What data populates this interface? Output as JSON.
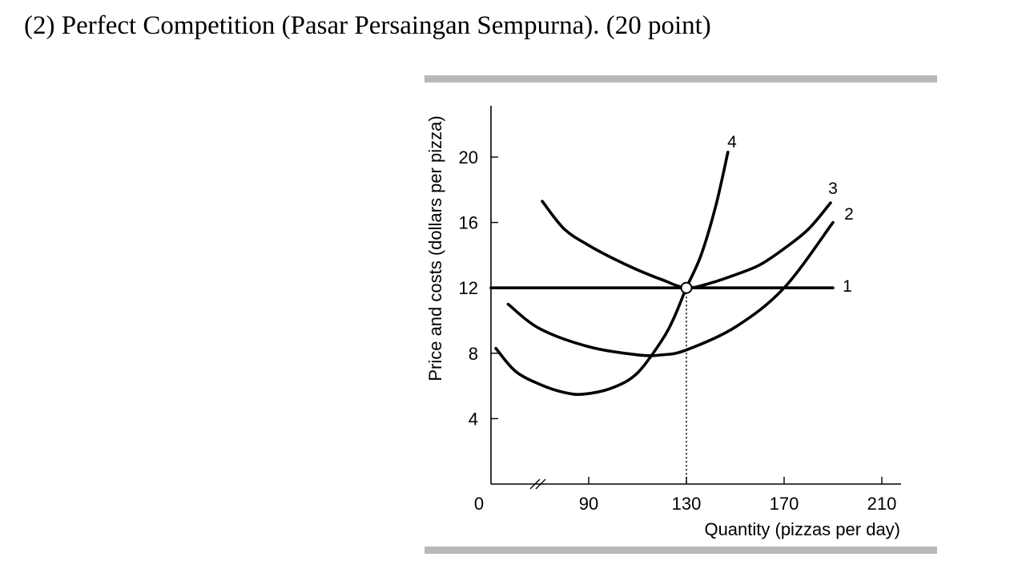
{
  "header": {
    "question": "(2) Perfect Competition (Pasar Persaingan Sempurna). (20 point)"
  },
  "colors": {
    "curve": "#000000",
    "frame_bar": "#b9b9b9"
  },
  "chart_data": {
    "type": "line",
    "xlabel": "Quantity (pizzas per day)",
    "ylabel": "Price and costs (dollars per pizza)",
    "xlim": [
      50,
      210
    ],
    "ylim": [
      0,
      23
    ],
    "x_ticks": [
      0,
      90,
      130,
      170,
      210
    ],
    "y_ticks": [
      4,
      8,
      12,
      16,
      20
    ],
    "axis_break": "x",
    "grid": false,
    "series": [
      {
        "name": "1",
        "x": [
          50,
          190
        ],
        "y": [
          12,
          12
        ]
      },
      {
        "name": "2",
        "x": [
          57,
          70,
          90,
          110,
          120,
          130,
          150,
          170,
          190
        ],
        "y": [
          11,
          9.5,
          8.4,
          7.9,
          7.9,
          8.2,
          9.6,
          12,
          16
        ]
      },
      {
        "name": "3",
        "x": [
          71,
          80,
          90,
          100,
          110,
          120,
          130,
          140,
          150,
          160,
          170,
          180,
          189
        ],
        "y": [
          17.3,
          15.6,
          14.6,
          13.8,
          13.1,
          12.5,
          12,
          12.3,
          12.8,
          13.4,
          14.4,
          15.6,
          17.2
        ]
      },
      {
        "name": "4",
        "x": [
          52,
          60,
          70,
          80,
          88,
          100,
          110,
          120,
          125,
          130,
          136,
          142,
          147
        ],
        "y": [
          8.3,
          6.9,
          6.1,
          5.6,
          5.5,
          5.9,
          6.8,
          8.8,
          10.2,
          12,
          14,
          17,
          20.3
        ]
      }
    ],
    "marker": {
      "x": 130,
      "y": 12,
      "dotted_line_to_x_axis": true
    }
  }
}
